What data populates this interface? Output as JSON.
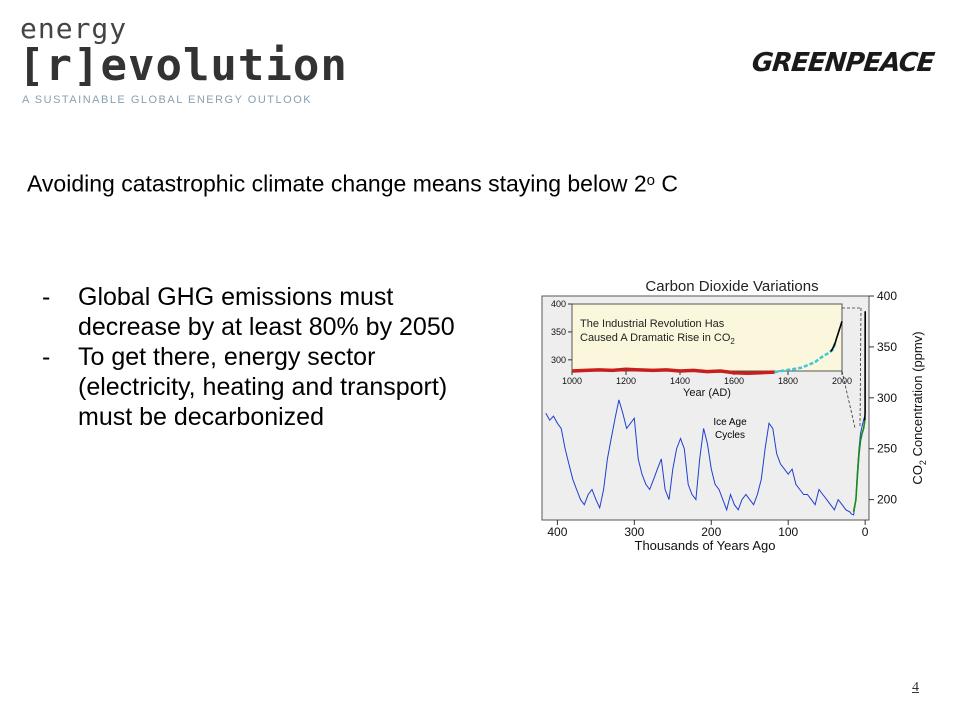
{
  "logo": {
    "line1": "energy",
    "line2": "[r]evolution",
    "tagline": "A SUSTAINABLE GLOBAL ENERGY OUTLOOK"
  },
  "greenpeace_logo": "GREENPEACE",
  "headline": {
    "text": "Avoiding catastrophic climate change means staying below 2",
    "degree": "o",
    "unit": " C"
  },
  "bullets": [
    {
      "dash": "-",
      "text": "Global GHG emissions must decrease by at least 80% by 2050"
    },
    {
      "dash": "-",
      "text": "To get there, energy sector (electricity, heating and transport) must be decarbonized"
    }
  ],
  "page_number": "4",
  "colors": {
    "ice_age": "#1f3fd0",
    "inset_red": "#c81e1e",
    "inset_cyan": "#3fc6d8",
    "inset_bg": "#fbf7dc",
    "modern_black": "#000000",
    "green": "#1a8a1a"
  },
  "chart_data": [
    {
      "type": "line",
      "title": "Carbon Dioxide Variations",
      "xlabel": "Thousands of Years Ago",
      "ylabel_main": "CO",
      "ylabel_sub": "2",
      "ylabel_rest": " Concentration (ppmv)",
      "xlim": [
        420,
        -5
      ],
      "ylim": [
        180,
        400
      ],
      "x_ticks": [
        "400",
        "300",
        "200",
        "100",
        "0"
      ],
      "y_ticks": [
        "200",
        "250",
        "300",
        "350",
        "400"
      ],
      "annotation_line1": "Ice Age",
      "annotation_line2": "Cycles",
      "series": [
        {
          "x": [
            415,
            410,
            405,
            400,
            395,
            390,
            385,
            380,
            375,
            370,
            365,
            360,
            355,
            350,
            345,
            340,
            335,
            330,
            325,
            320,
            315,
            310,
            305,
            300,
            295,
            290,
            285,
            280,
            275,
            270,
            265,
            260,
            255,
            250,
            245,
            240,
            235,
            230,
            225,
            220,
            215,
            210,
            205,
            200,
            195,
            190,
            185,
            180,
            175,
            170,
            165,
            160,
            155,
            150,
            145,
            140,
            135,
            130,
            125,
            120,
            115,
            110,
            105,
            100,
            95,
            90,
            85,
            80,
            75,
            70,
            65,
            60,
            55,
            50,
            45,
            40,
            35,
            30,
            25,
            20,
            18,
            15,
            12,
            10,
            8,
            6,
            4,
            2,
            0
          ],
          "values": [
            285,
            278,
            282,
            275,
            270,
            250,
            235,
            220,
            210,
            200,
            195,
            205,
            210,
            200,
            192,
            210,
            240,
            260,
            280,
            298,
            285,
            270,
            275,
            280,
            240,
            225,
            215,
            210,
            220,
            230,
            240,
            210,
            200,
            230,
            250,
            260,
            250,
            215,
            205,
            200,
            240,
            270,
            255,
            230,
            215,
            210,
            200,
            190,
            205,
            195,
            190,
            200,
            205,
            200,
            195,
            205,
            220,
            250,
            275,
            270,
            245,
            235,
            230,
            225,
            230,
            215,
            210,
            205,
            205,
            200,
            195,
            210,
            205,
            200,
            195,
            190,
            200,
            195,
            190,
            188,
            186,
            185,
            200,
            230,
            250,
            265,
            272,
            278,
            282
          ]
        },
        {
          "x": [
            15,
            12,
            10,
            8,
            6,
            4,
            2,
            0
          ],
          "values": [
            188,
            200,
            225,
            245,
            258,
            265,
            270,
            280
          ]
        },
        {
          "x": [
            1.2,
            0.8,
            0.4,
            0.1,
            0.05,
            0
          ],
          "values": [
            278,
            280,
            280,
            285,
            310,
            385
          ]
        }
      ]
    },
    {
      "type": "line",
      "title": "The Industrial Revolution Has",
      "title_line2": "Caused A Dramatic Rise in CO",
      "title_sub": "2",
      "xlabel": "Year (AD)",
      "xlim": [
        1000,
        2000
      ],
      "ylim": [
        280,
        400
      ],
      "x_ticks": [
        "1000",
        "1200",
        "1400",
        "1600",
        "1800",
        "2000"
      ],
      "y_ticks": [
        "300",
        "350",
        "400"
      ],
      "series": [
        {
          "x": [
            1000,
            1050,
            1100,
            1150,
            1200,
            1250,
            1300,
            1350,
            1400,
            1450,
            1500,
            1550,
            1600,
            1650,
            1700,
            1750
          ],
          "values": [
            280,
            281,
            282,
            281,
            283,
            282,
            281,
            282,
            280,
            281,
            279,
            280,
            277,
            276,
            277,
            278
          ]
        },
        {
          "x": [
            1750,
            1800,
            1850,
            1900,
            1925,
            1950,
            1965,
            1975
          ],
          "values": [
            278,
            282,
            286,
            296,
            305,
            312,
            318,
            330
          ]
        },
        {
          "x": [
            1958,
            1965,
            1970,
            1975,
            1980,
            1985,
            1990,
            1995,
            2000
          ],
          "values": [
            315,
            320,
            325,
            331,
            339,
            346,
            354,
            361,
            369
          ]
        }
      ]
    }
  ]
}
